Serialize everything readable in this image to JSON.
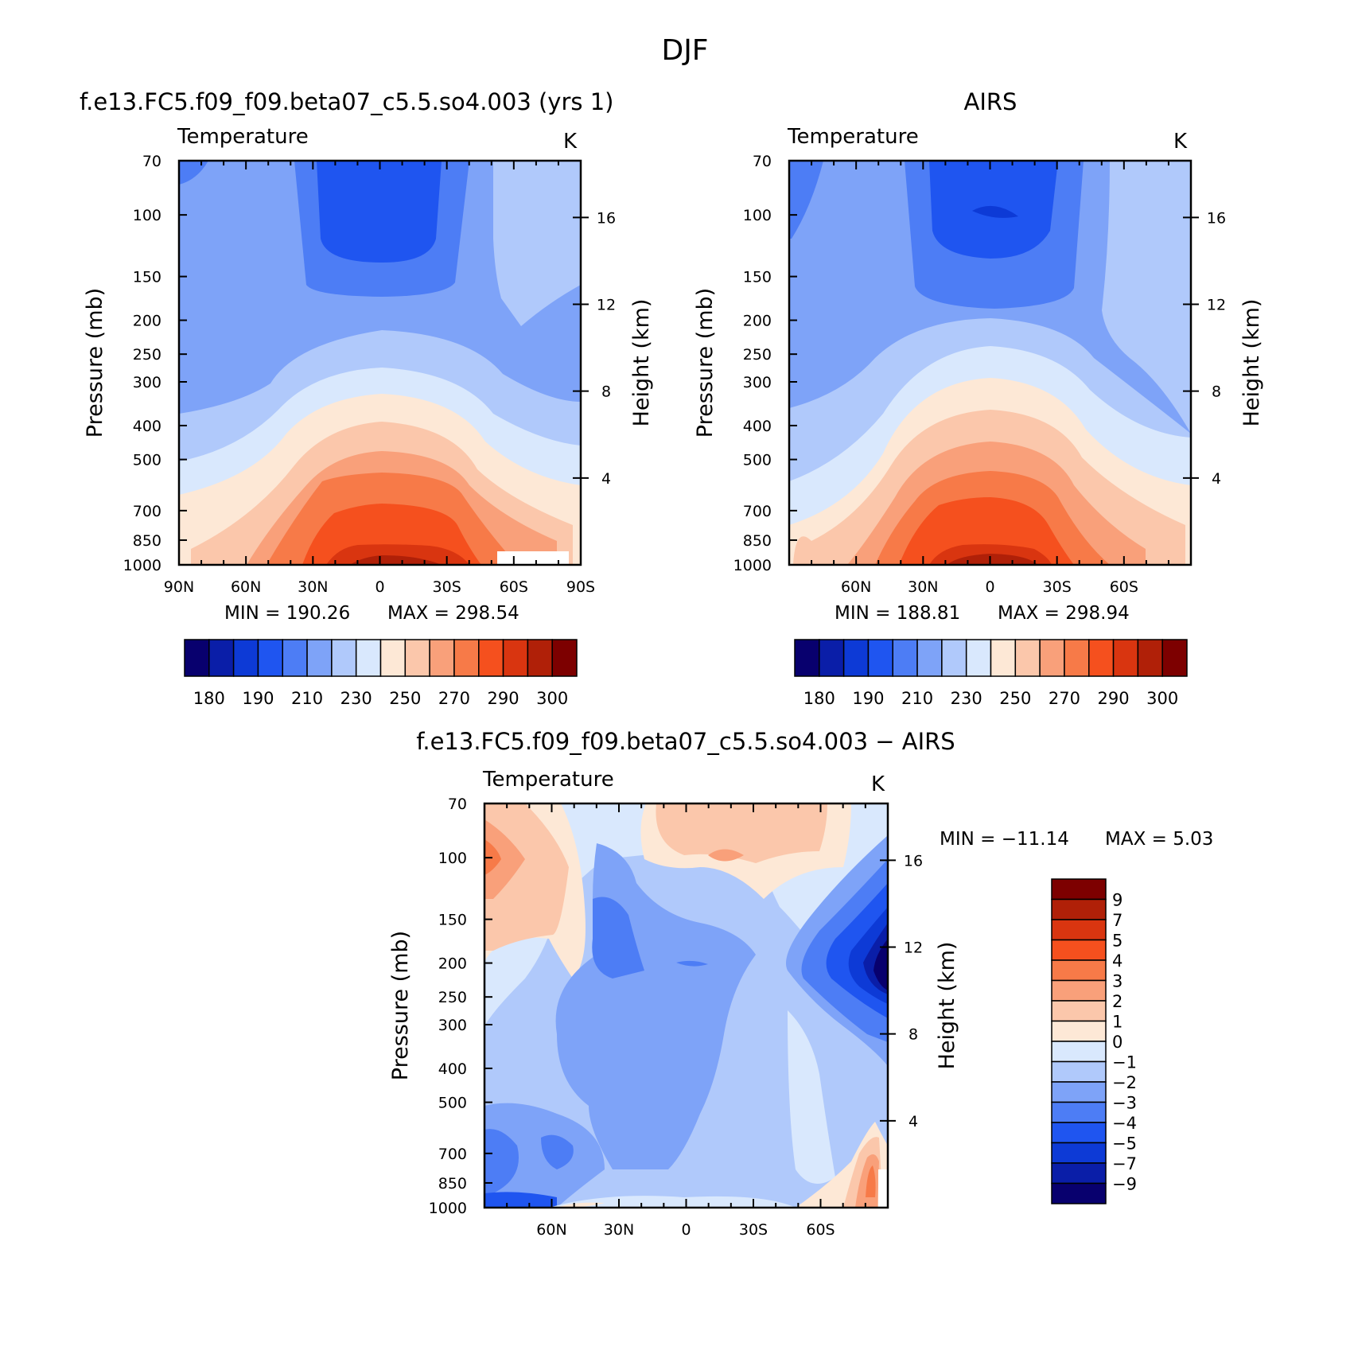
{
  "figure": {
    "title": "DJF"
  },
  "colors": {
    "abs_scale": [
      "#08006e",
      "#0a1ea8",
      "#0d3ad6",
      "#1f55f0",
      "#4d7df5",
      "#7ea3f8",
      "#b0c9fb",
      "#d9e8fd",
      "#fde8d6",
      "#fbc7ab",
      "#f9a07a",
      "#f77a48",
      "#f5501e",
      "#d93510",
      "#b02008",
      "#7d0000"
    ],
    "diff_scale": [
      "#7d0000",
      "#b02008",
      "#d93510",
      "#f5501e",
      "#f77a48",
      "#f9a07a",
      "#fbc7ab",
      "#fde8d6",
      "#d9e8fd",
      "#b0c9fb",
      "#7ea3f8",
      "#4d7df5",
      "#1f55f0",
      "#0d3ad6",
      "#0a1ea8",
      "#08006e"
    ]
  },
  "chart_data": [
    {
      "id": "model",
      "type": "heatmap",
      "title": "f.e13.FC5.f09_f09.beta07_c5.5.so4.003 (yrs  1)",
      "left_string": "Temperature",
      "right_string": "K",
      "ylabel": "Pressure  (mb)",
      "ylabel_right": "Height  (km)",
      "x_ticks": [
        "90N",
        "60N",
        "30N",
        "0",
        "30S",
        "60S",
        "90S"
      ],
      "y_ticks": [
        "70",
        "100",
        "150",
        "200",
        "250",
        "300",
        "400",
        "500",
        "700",
        "850",
        "1000"
      ],
      "y2_ticks": [
        "16",
        "12",
        "8",
        "4"
      ],
      "min_text": "MIN  =  190.26",
      "max_text": "MAX  =  298.54",
      "min": 190.26,
      "max": 298.54,
      "colorbar_labels": [
        "180",
        "190",
        "210",
        "230",
        "250",
        "270",
        "290",
        "300"
      ],
      "colorbar_levels": [
        175,
        180,
        185,
        190,
        200,
        210,
        220,
        230,
        240,
        250,
        260,
        270,
        280,
        290,
        295,
        300,
        305
      ]
    },
    {
      "id": "obs",
      "type": "heatmap",
      "title": "AIRS",
      "left_string": "Temperature",
      "right_string": "K",
      "ylabel": "Pressure  (mb)",
      "ylabel_right": "Height  (km)",
      "x_ticks": [
        "60N",
        "30N",
        "0",
        "30S",
        "60S"
      ],
      "y_ticks": [
        "70",
        "100",
        "150",
        "200",
        "250",
        "300",
        "400",
        "500",
        "700",
        "850",
        "1000"
      ],
      "y2_ticks": [
        "16",
        "12",
        "8",
        "4"
      ],
      "min_text": "MIN  =  188.81",
      "max_text": "MAX  =  298.94",
      "min": 188.81,
      "max": 298.94,
      "colorbar_labels": [
        "180",
        "190",
        "210",
        "230",
        "250",
        "270",
        "290",
        "300"
      ],
      "colorbar_levels": [
        175,
        180,
        185,
        190,
        200,
        210,
        220,
        230,
        240,
        250,
        260,
        270,
        280,
        290,
        295,
        300,
        305
      ]
    },
    {
      "id": "diff",
      "type": "heatmap",
      "title": "f.e13.FC5.f09_f09.beta07_c5.5.so4.003  −  AIRS",
      "left_string": "Temperature",
      "right_string": "K",
      "ylabel": "Pressure  (mb)",
      "ylabel_right": "Height  (km)",
      "x_ticks": [
        "60N",
        "30N",
        "0",
        "30S",
        "60S"
      ],
      "y_ticks": [
        "70",
        "100",
        "150",
        "200",
        "250",
        "300",
        "400",
        "500",
        "700",
        "850",
        "1000"
      ],
      "y2_ticks": [
        "16",
        "12",
        "8",
        "4"
      ],
      "min_text": "MIN  =  −11.14",
      "max_text": "MAX  =     5.03",
      "min": -11.14,
      "max": 5.03,
      "colorbar_labels": [
        "9",
        "7",
        "5",
        "4",
        "3",
        "2",
        "1",
        "0",
        "−1",
        "−2",
        "−3",
        "−4",
        "−5",
        "−7",
        "−9"
      ]
    }
  ]
}
